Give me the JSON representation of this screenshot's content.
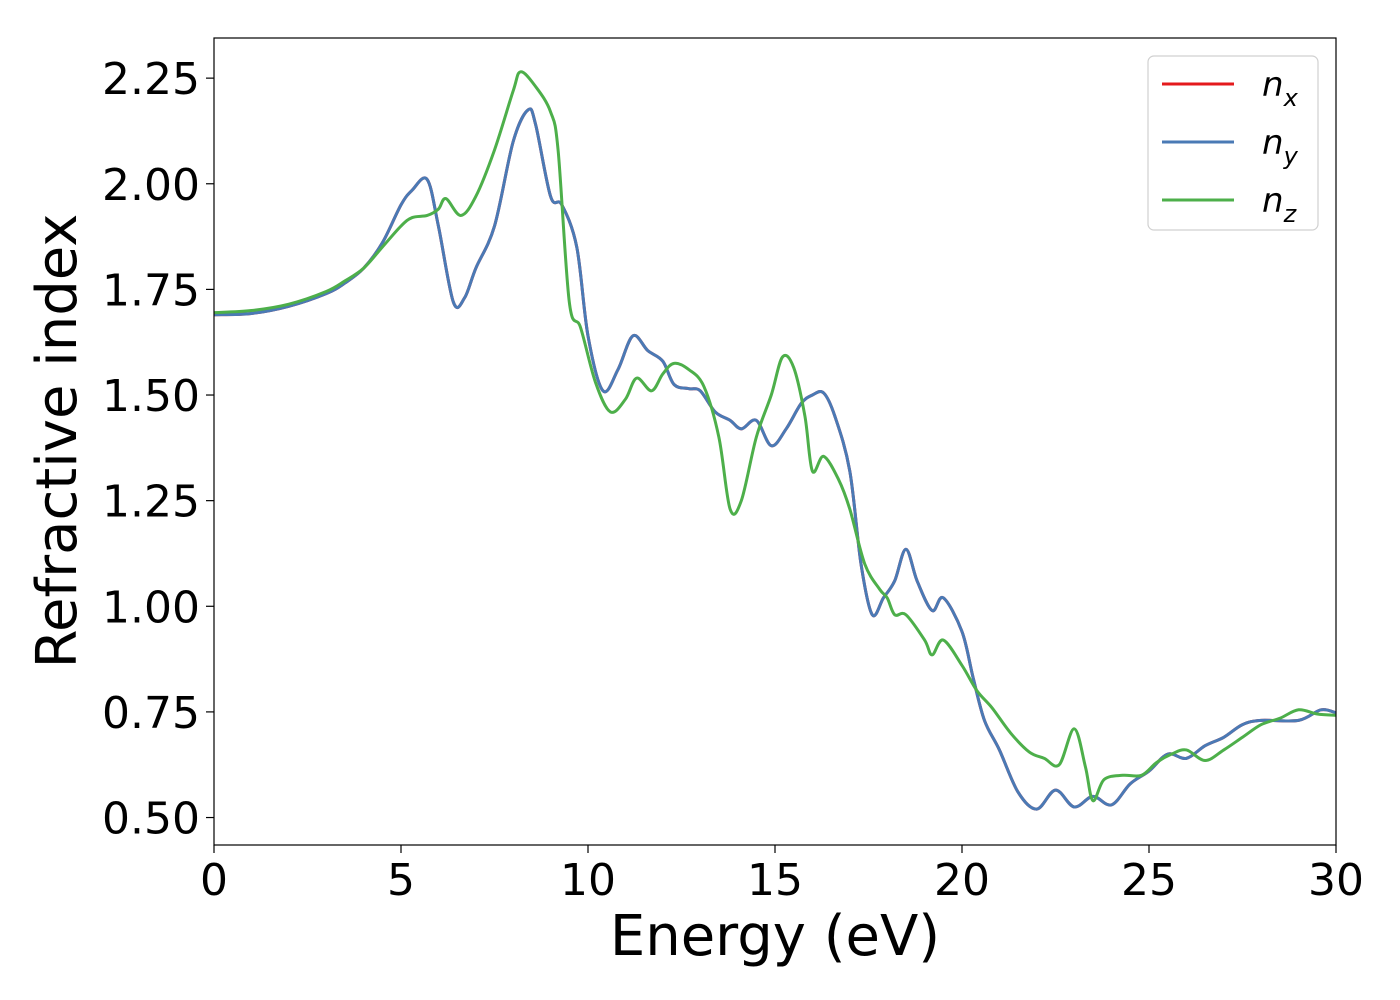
{
  "chart_data": {
    "type": "line",
    "title": "",
    "xlabel": "Energy (eV)",
    "ylabel": "Refractive index",
    "xlim": [
      0,
      30
    ],
    "ylim": [
      0.435,
      2.345
    ],
    "xticks": [
      0,
      5,
      10,
      15,
      20,
      25,
      30
    ],
    "xtick_labels": [
      "0",
      "5",
      "10",
      "15",
      "20",
      "25",
      "30"
    ],
    "yticks": [
      0.5,
      0.75,
      1.0,
      1.25,
      1.5,
      1.75,
      2.0,
      2.25
    ],
    "ytick_labels": [
      "0.50",
      "0.75",
      "1.00",
      "1.25",
      "1.50",
      "1.75",
      "2.00",
      "2.25"
    ],
    "grid": false,
    "legend_position": "top-right",
    "series": [
      {
        "name": "n_x",
        "legend_base": "n",
        "legend_sub": "x",
        "color": "#e41a1c",
        "points": [
          [
            0,
            1.69
          ],
          [
            1,
            1.693
          ],
          [
            2,
            1.71
          ],
          [
            3,
            1.74
          ],
          [
            3.5,
            1.765
          ],
          [
            4,
            1.8
          ],
          [
            4.5,
            1.86
          ],
          [
            5,
            1.95
          ],
          [
            5.3,
            1.985
          ],
          [
            5.7,
            2.01
          ],
          [
            6,
            1.9
          ],
          [
            6.4,
            1.72
          ],
          [
            6.7,
            1.73
          ],
          [
            7,
            1.8
          ],
          [
            7.5,
            1.9
          ],
          [
            8,
            2.1
          ],
          [
            8.4,
            2.175
          ],
          [
            8.6,
            2.14
          ],
          [
            9,
            1.97
          ],
          [
            9.3,
            1.95
          ],
          [
            9.7,
            1.85
          ],
          [
            10,
            1.64
          ],
          [
            10.4,
            1.51
          ],
          [
            10.8,
            1.56
          ],
          [
            11.2,
            1.64
          ],
          [
            11.6,
            1.605
          ],
          [
            12,
            1.58
          ],
          [
            12.3,
            1.525
          ],
          [
            12.7,
            1.515
          ],
          [
            13,
            1.51
          ],
          [
            13.4,
            1.46
          ],
          [
            13.8,
            1.44
          ],
          [
            14.1,
            1.42
          ],
          [
            14.5,
            1.44
          ],
          [
            14.9,
            1.38
          ],
          [
            15.3,
            1.42
          ],
          [
            15.7,
            1.48
          ],
          [
            16,
            1.5
          ],
          [
            16.3,
            1.505
          ],
          [
            16.6,
            1.45
          ],
          [
            17,
            1.32
          ],
          [
            17.3,
            1.1
          ],
          [
            17.6,
            0.98
          ],
          [
            17.9,
            1.02
          ],
          [
            18.2,
            1.06
          ],
          [
            18.5,
            1.135
          ],
          [
            18.8,
            1.06
          ],
          [
            19.2,
            0.99
          ],
          [
            19.5,
            1.02
          ],
          [
            20,
            0.94
          ],
          [
            20.3,
            0.83
          ],
          [
            20.6,
            0.73
          ],
          [
            21,
            0.66
          ],
          [
            21.5,
            0.56
          ],
          [
            22,
            0.52
          ],
          [
            22.5,
            0.565
          ],
          [
            23,
            0.525
          ],
          [
            23.5,
            0.55
          ],
          [
            24,
            0.53
          ],
          [
            24.5,
            0.58
          ],
          [
            25,
            0.61
          ],
          [
            25.5,
            0.65
          ],
          [
            26,
            0.64
          ],
          [
            26.5,
            0.67
          ],
          [
            27,
            0.69
          ],
          [
            27.5,
            0.72
          ],
          [
            28,
            0.73
          ],
          [
            29,
            0.73
          ],
          [
            29.6,
            0.755
          ],
          [
            30,
            0.748
          ]
        ]
      },
      {
        "name": "n_y",
        "legend_base": "n",
        "legend_sub": "y",
        "color": "#4a7ab5",
        "points": [
          [
            0,
            1.69
          ],
          [
            1,
            1.693
          ],
          [
            2,
            1.71
          ],
          [
            3,
            1.74
          ],
          [
            3.5,
            1.765
          ],
          [
            4,
            1.8
          ],
          [
            4.5,
            1.86
          ],
          [
            5,
            1.95
          ],
          [
            5.3,
            1.985
          ],
          [
            5.7,
            2.01
          ],
          [
            6,
            1.9
          ],
          [
            6.4,
            1.72
          ],
          [
            6.7,
            1.73
          ],
          [
            7,
            1.8
          ],
          [
            7.5,
            1.9
          ],
          [
            8,
            2.1
          ],
          [
            8.4,
            2.175
          ],
          [
            8.6,
            2.14
          ],
          [
            9,
            1.97
          ],
          [
            9.3,
            1.95
          ],
          [
            9.7,
            1.85
          ],
          [
            10,
            1.64
          ],
          [
            10.4,
            1.51
          ],
          [
            10.8,
            1.56
          ],
          [
            11.2,
            1.64
          ],
          [
            11.6,
            1.605
          ],
          [
            12,
            1.58
          ],
          [
            12.3,
            1.525
          ],
          [
            12.7,
            1.515
          ],
          [
            13,
            1.51
          ],
          [
            13.4,
            1.46
          ],
          [
            13.8,
            1.44
          ],
          [
            14.1,
            1.42
          ],
          [
            14.5,
            1.44
          ],
          [
            14.9,
            1.38
          ],
          [
            15.3,
            1.42
          ],
          [
            15.7,
            1.48
          ],
          [
            16,
            1.5
          ],
          [
            16.3,
            1.505
          ],
          [
            16.6,
            1.45
          ],
          [
            17,
            1.32
          ],
          [
            17.3,
            1.1
          ],
          [
            17.6,
            0.98
          ],
          [
            17.9,
            1.02
          ],
          [
            18.2,
            1.06
          ],
          [
            18.5,
            1.135
          ],
          [
            18.8,
            1.06
          ],
          [
            19.2,
            0.99
          ],
          [
            19.5,
            1.02
          ],
          [
            20,
            0.94
          ],
          [
            20.3,
            0.83
          ],
          [
            20.6,
            0.73
          ],
          [
            21,
            0.66
          ],
          [
            21.5,
            0.56
          ],
          [
            22,
            0.52
          ],
          [
            22.5,
            0.565
          ],
          [
            23,
            0.525
          ],
          [
            23.5,
            0.55
          ],
          [
            24,
            0.53
          ],
          [
            24.5,
            0.58
          ],
          [
            25,
            0.61
          ],
          [
            25.5,
            0.65
          ],
          [
            26,
            0.64
          ],
          [
            26.5,
            0.67
          ],
          [
            27,
            0.69
          ],
          [
            27.5,
            0.72
          ],
          [
            28,
            0.73
          ],
          [
            29,
            0.73
          ],
          [
            29.6,
            0.755
          ],
          [
            30,
            0.748
          ]
        ]
      },
      {
        "name": "n_z",
        "legend_base": "n",
        "legend_sub": "z",
        "color": "#4daf4a",
        "points": [
          [
            0,
            1.695
          ],
          [
            1,
            1.7
          ],
          [
            2,
            1.715
          ],
          [
            3,
            1.745
          ],
          [
            3.5,
            1.77
          ],
          [
            4,
            1.8
          ],
          [
            4.5,
            1.85
          ],
          [
            5,
            1.9
          ],
          [
            5.3,
            1.92
          ],
          [
            5.7,
            1.925
          ],
          [
            6,
            1.94
          ],
          [
            6.2,
            1.965
          ],
          [
            6.6,
            1.925
          ],
          [
            7,
            1.97
          ],
          [
            7.5,
            2.08
          ],
          [
            8,
            2.22
          ],
          [
            8.2,
            2.265
          ],
          [
            8.6,
            2.23
          ],
          [
            9,
            2.17
          ],
          [
            9.2,
            2.08
          ],
          [
            9.5,
            1.72
          ],
          [
            9.8,
            1.66
          ],
          [
            10.2,
            1.53
          ],
          [
            10.6,
            1.46
          ],
          [
            11,
            1.49
          ],
          [
            11.3,
            1.54
          ],
          [
            11.7,
            1.51
          ],
          [
            12,
            1.55
          ],
          [
            12.3,
            1.575
          ],
          [
            12.7,
            1.56
          ],
          [
            13.1,
            1.52
          ],
          [
            13.5,
            1.4
          ],
          [
            13.8,
            1.23
          ],
          [
            14.1,
            1.25
          ],
          [
            14.5,
            1.4
          ],
          [
            14.9,
            1.5
          ],
          [
            15.2,
            1.59
          ],
          [
            15.5,
            1.565
          ],
          [
            15.8,
            1.45
          ],
          [
            16,
            1.32
          ],
          [
            16.3,
            1.355
          ],
          [
            16.7,
            1.3
          ],
          [
            17,
            1.23
          ],
          [
            17.4,
            1.1
          ],
          [
            17.8,
            1.04
          ],
          [
            18,
            1.02
          ],
          [
            18.2,
            0.98
          ],
          [
            18.5,
            0.98
          ],
          [
            19,
            0.92
          ],
          [
            19.2,
            0.885
          ],
          [
            19.5,
            0.92
          ],
          [
            20,
            0.86
          ],
          [
            20.4,
            0.8
          ],
          [
            20.8,
            0.76
          ],
          [
            21.3,
            0.7
          ],
          [
            21.8,
            0.655
          ],
          [
            22.2,
            0.64
          ],
          [
            22.6,
            0.625
          ],
          [
            23,
            0.71
          ],
          [
            23.3,
            0.62
          ],
          [
            23.5,
            0.54
          ],
          [
            23.8,
            0.59
          ],
          [
            24.3,
            0.6
          ],
          [
            24.8,
            0.6
          ],
          [
            25.2,
            0.63
          ],
          [
            25.6,
            0.65
          ],
          [
            26,
            0.66
          ],
          [
            26.5,
            0.635
          ],
          [
            27,
            0.66
          ],
          [
            27.5,
            0.69
          ],
          [
            28,
            0.72
          ],
          [
            28.5,
            0.735
          ],
          [
            29,
            0.755
          ],
          [
            29.5,
            0.745
          ],
          [
            30,
            0.742
          ]
        ]
      }
    ]
  }
}
